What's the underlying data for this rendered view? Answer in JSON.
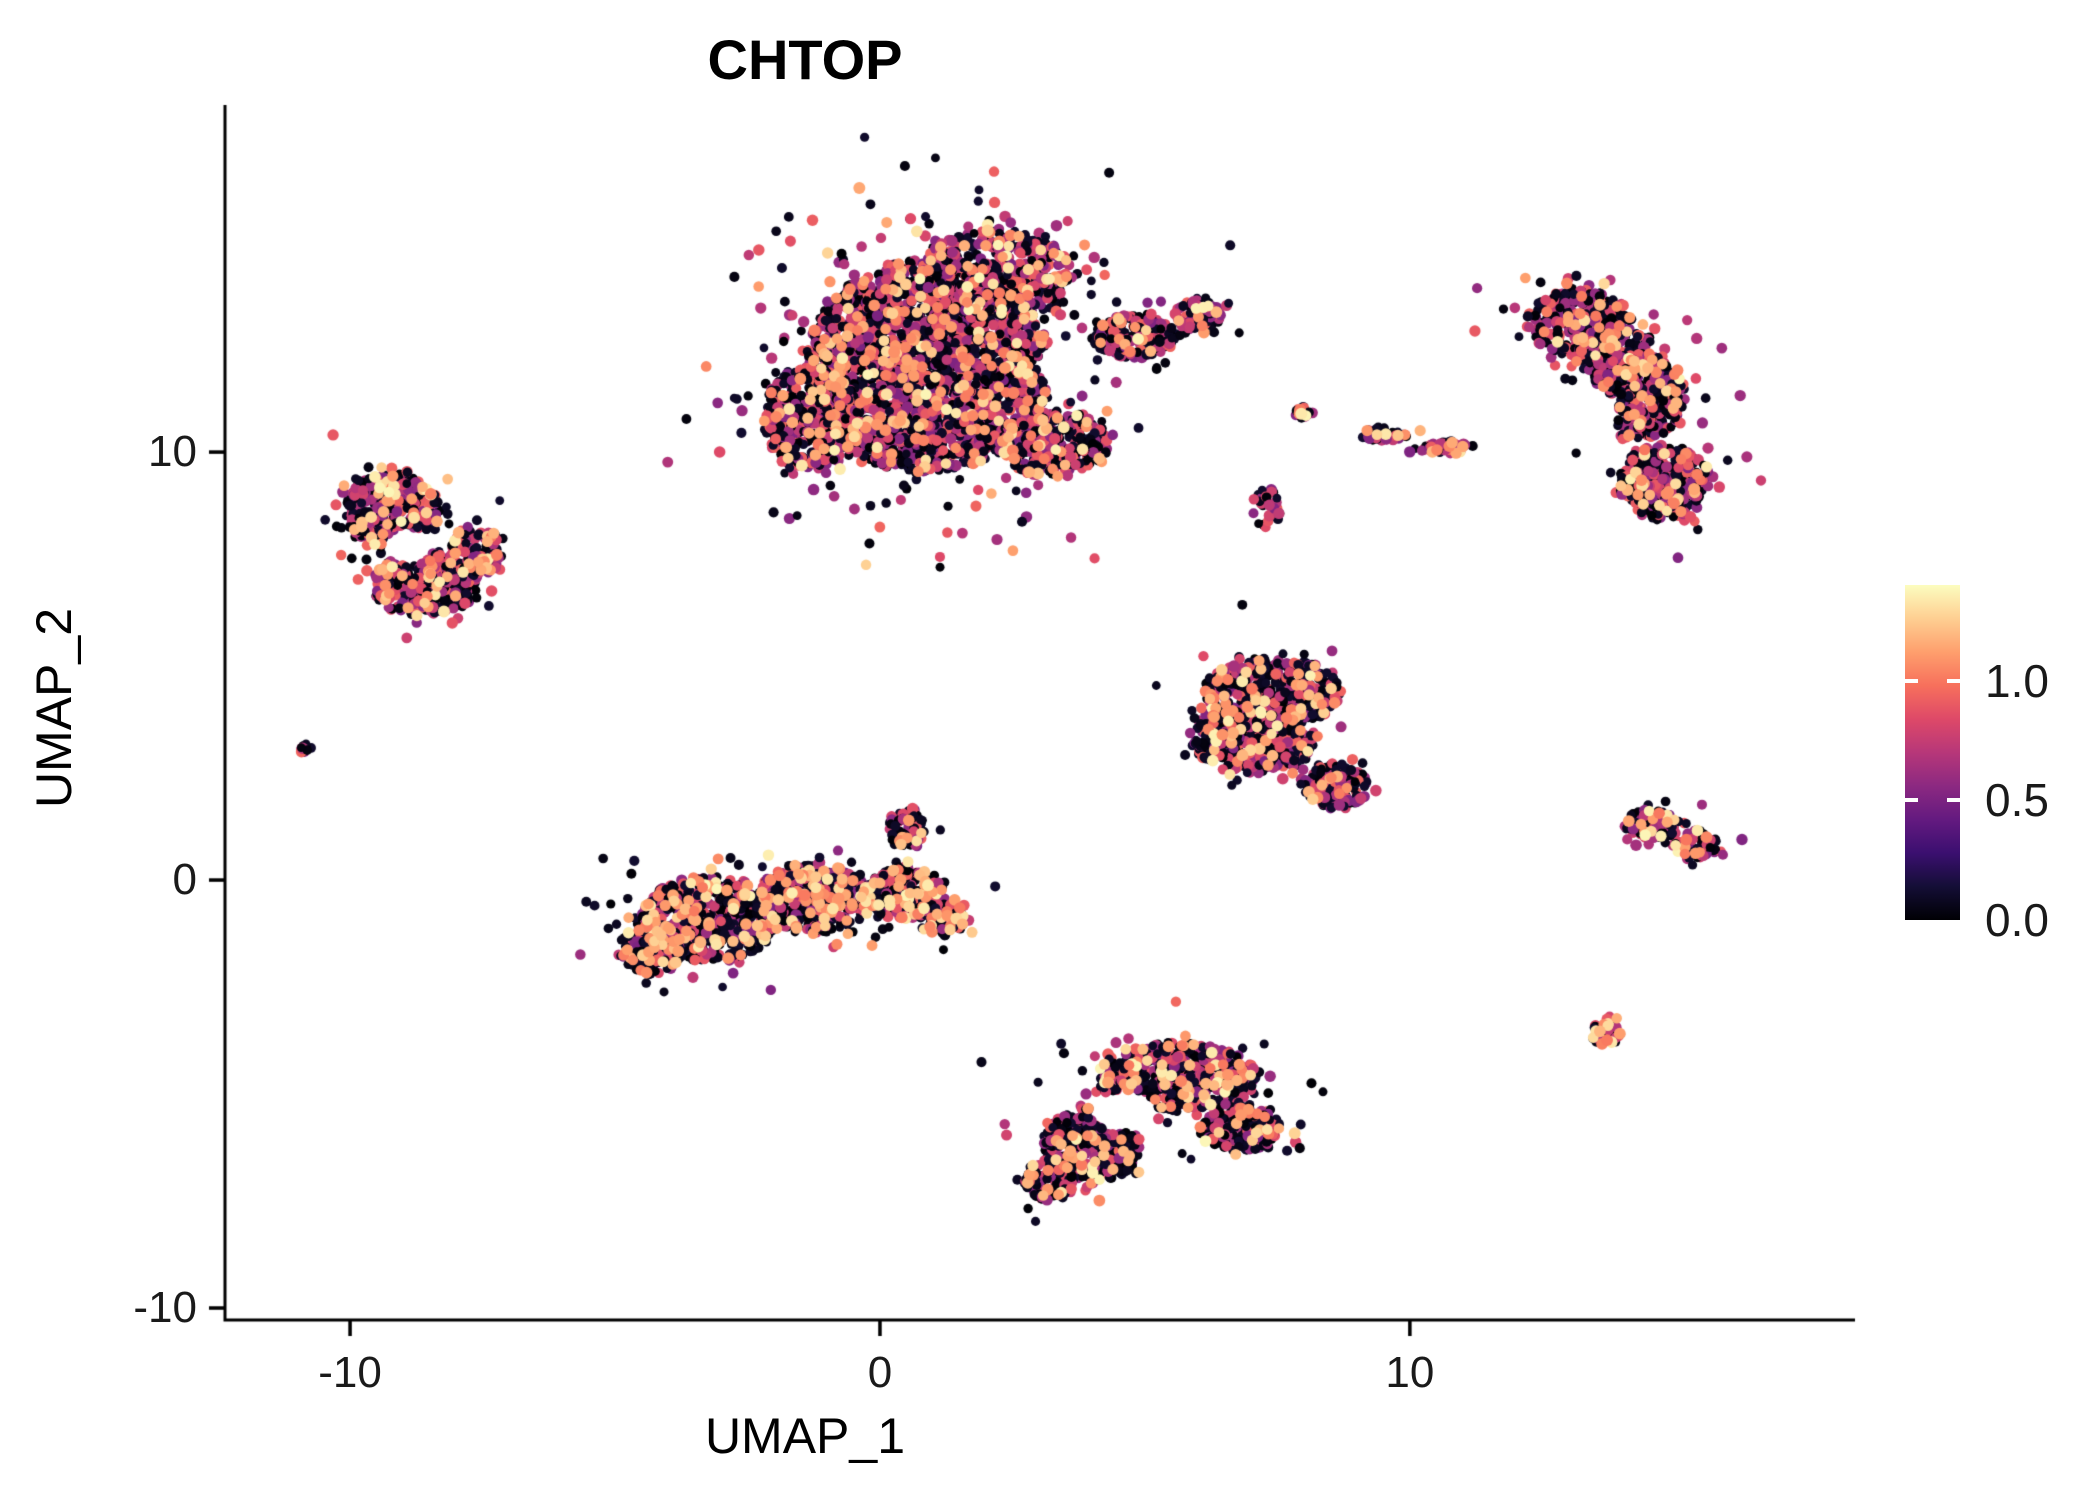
{
  "chart_data": {
    "type": "scatter",
    "title": "CHTOP",
    "subtitle": "",
    "xlabel": "UMAP_1",
    "ylabel": "UMAP_2",
    "grid": false,
    "background": "#ffffff",
    "xlim": [
      -12.36,
      18.4
    ],
    "ylim": [
      -10.28,
      18.11
    ],
    "x_ticks": [
      {
        "value": -10,
        "label": "-10"
      },
      {
        "value": 0,
        "label": "0"
      },
      {
        "value": 10,
        "label": "10"
      }
    ],
    "y_ticks": [
      {
        "value": 10,
        "label": "10"
      },
      {
        "value": 0,
        "label": "0"
      },
      {
        "value": -10,
        "label": "-10"
      }
    ],
    "legend": {
      "position": "right",
      "vmin": 0.0,
      "vmax": 1.4,
      "ticks": [
        {
          "value": 1.0,
          "label": "1.0"
        },
        {
          "value": 0.5,
          "label": "0.5"
        },
        {
          "value": 0.0,
          "label": "0.0"
        }
      ]
    },
    "colormap": {
      "name": "magma",
      "stops": [
        "#000004",
        "#140e36",
        "#3b0f70",
        "#641a80",
        "#8c2981",
        "#b73779",
        "#de4968",
        "#f7705c",
        "#fe9f6d",
        "#fecf92",
        "#fcfdbf"
      ]
    },
    "point": {
      "radius_low": 4.7,
      "radius_mid": 5.4,
      "radius_high": 5.6
    },
    "expression_levels": {
      "zero": [
        0.0,
        0.12
      ],
      "mid": [
        0.5,
        0.95
      ],
      "high": [
        1.0,
        1.2
      ],
      "top": [
        1.2,
        1.38
      ]
    },
    "clusters": [
      {
        "name": "top-center-large",
        "mix": {
          "zero": 0.48,
          "mid": 0.42,
          "high": 0.07,
          "top": 0.03
        },
        "holes": [
          {
            "x": 3.4,
            "y": 12.0,
            "rx": 0.45,
            "ry": 0.5
          }
        ],
        "lobes": [
          {
            "x": 0.9,
            "y": 12.0,
            "sx": 2.3,
            "sy": 2.5,
            "n": 2400
          },
          {
            "x": -1.3,
            "y": 10.8,
            "sx": 0.9,
            "sy": 1.2,
            "n": 400
          },
          {
            "x": 2.2,
            "y": 14.2,
            "sx": 1.4,
            "sy": 1.0,
            "n": 450
          },
          {
            "x": 3.3,
            "y": 10.2,
            "sx": 1.0,
            "sy": 0.8,
            "n": 300
          },
          {
            "x": 4.8,
            "y": 12.7,
            "sx": 0.8,
            "sy": 0.5,
            "n": 200
          },
          {
            "x": 6.0,
            "y": 13.2,
            "sx": 0.45,
            "sy": 0.35,
            "n": 100
          }
        ]
      },
      {
        "name": "top-right-crescent",
        "mix": {
          "zero": 0.5,
          "mid": 0.42,
          "high": 0.05,
          "top": 0.03
        },
        "holes": [
          {
            "x": 13.1,
            "y": 10.9,
            "rx": 0.85,
            "ry": 0.75
          }
        ],
        "lobes": [
          {
            "x": 13.2,
            "y": 13.0,
            "sx": 1.0,
            "sy": 0.8,
            "n": 300
          },
          {
            "x": 13.9,
            "y": 12.3,
            "sx": 0.8,
            "sy": 0.6,
            "n": 150
          },
          {
            "x": 14.3,
            "y": 11.3,
            "sx": 0.9,
            "sy": 1.0,
            "n": 380
          },
          {
            "x": 14.8,
            "y": 9.3,
            "sx": 0.85,
            "sy": 0.9,
            "n": 320
          }
        ]
      },
      {
        "name": "left-cluster",
        "mix": {
          "zero": 0.45,
          "mid": 0.45,
          "high": 0.06,
          "top": 0.04
        },
        "holes": [
          {
            "x": -8.9,
            "y": 7.8,
            "rx": 0.5,
            "ry": 0.45
          }
        ],
        "lobes": [
          {
            "x": -9.2,
            "y": 8.6,
            "sx": 0.9,
            "sy": 0.9,
            "n": 350
          },
          {
            "x": -8.6,
            "y": 6.9,
            "sx": 1.0,
            "sy": 0.75,
            "n": 350
          },
          {
            "x": -7.6,
            "y": 7.7,
            "sx": 0.5,
            "sy": 0.6,
            "n": 120
          }
        ]
      },
      {
        "name": "far-left-dot",
        "mix": {
          "zero": 0.5,
          "mid": 0.5,
          "high": 0.0,
          "top": 0.0
        },
        "holes": [],
        "lobes": [
          {
            "x": -10.85,
            "y": 3.1,
            "sx": 0.13,
            "sy": 0.13,
            "n": 14
          }
        ]
      },
      {
        "name": "middle-right-cluster",
        "mix": {
          "zero": 0.52,
          "mid": 0.4,
          "high": 0.05,
          "top": 0.03
        },
        "holes": [],
        "lobes": [
          {
            "x": 7.4,
            "y": 4.4,
            "sx": 1.3,
            "sy": 0.8,
            "n": 450
          },
          {
            "x": 7.2,
            "y": 3.2,
            "sx": 1.0,
            "sy": 0.7,
            "n": 300
          },
          {
            "x": 8.6,
            "y": 2.2,
            "sx": 0.6,
            "sy": 0.55,
            "n": 150
          },
          {
            "x": 6.3,
            "y": 3.4,
            "sx": 0.5,
            "sy": 0.6,
            "n": 120
          }
        ]
      },
      {
        "name": "bottom-left-cluster",
        "mix": {
          "zero": 0.55,
          "mid": 0.3,
          "high": 0.09,
          "top": 0.06
        },
        "holes": [],
        "lobes": [
          {
            "x": -3.2,
            "y": -0.9,
            "sx": 1.3,
            "sy": 1.0,
            "n": 650
          },
          {
            "x": -1.2,
            "y": -0.4,
            "sx": 1.1,
            "sy": 0.8,
            "n": 450
          },
          {
            "x": 0.4,
            "y": -0.3,
            "sx": 0.8,
            "sy": 0.6,
            "n": 250
          },
          {
            "x": -4.3,
            "y": -1.6,
            "sx": 0.6,
            "sy": 0.6,
            "n": 150
          },
          {
            "x": 0.5,
            "y": 1.2,
            "sx": 0.35,
            "sy": 0.5,
            "n": 70
          },
          {
            "x": 1.2,
            "y": -0.9,
            "sx": 0.4,
            "sy": 0.4,
            "n": 80
          }
        ]
      },
      {
        "name": "bottom-center-cluster",
        "mix": {
          "zero": 0.6,
          "mid": 0.3,
          "high": 0.06,
          "top": 0.04
        },
        "holes": [
          {
            "x": 4.6,
            "y": -5.4,
            "rx": 0.65,
            "ry": 0.5
          }
        ],
        "lobes": [
          {
            "x": 5.6,
            "y": -4.6,
            "sx": 1.5,
            "sy": 0.8,
            "n": 550
          },
          {
            "x": 4.0,
            "y": -6.2,
            "sx": 0.9,
            "sy": 0.9,
            "n": 350
          },
          {
            "x": 6.8,
            "y": -5.8,
            "sx": 0.8,
            "sy": 0.6,
            "n": 200
          },
          {
            "x": 3.2,
            "y": -7.0,
            "sx": 0.5,
            "sy": 0.5,
            "n": 120
          }
        ]
      },
      {
        "name": "right-small-elongated",
        "mix": {
          "zero": 0.45,
          "mid": 0.4,
          "high": 0.08,
          "top": 0.07
        },
        "holes": [],
        "lobes": [
          {
            "x": 14.6,
            "y": 1.3,
            "sx": 0.55,
            "sy": 0.35,
            "n": 90
          },
          {
            "x": 15.4,
            "y": 0.8,
            "sx": 0.45,
            "sy": 0.3,
            "n": 70
          }
        ]
      },
      {
        "name": "right-small-round",
        "mix": {
          "zero": 0.45,
          "mid": 0.35,
          "high": 0.1,
          "top": 0.1
        },
        "holes": [],
        "lobes": [
          {
            "x": 13.7,
            "y": -3.6,
            "sx": 0.28,
            "sy": 0.28,
            "n": 50
          }
        ]
      },
      {
        "name": "small-dot-mid-top",
        "mix": {
          "zero": 0.3,
          "mid": 0.4,
          "high": 0.15,
          "top": 0.15
        },
        "holes": [],
        "lobes": [
          {
            "x": 8.0,
            "y": 10.9,
            "sx": 0.18,
            "sy": 0.16,
            "n": 20
          }
        ]
      },
      {
        "name": "streak-mid-top",
        "mix": {
          "zero": 0.35,
          "mid": 0.45,
          "high": 0.1,
          "top": 0.1
        },
        "holes": [],
        "lobes": [
          {
            "x": 9.5,
            "y": 10.4,
            "sx": 0.45,
            "sy": 0.16,
            "n": 45
          },
          {
            "x": 10.7,
            "y": 10.1,
            "sx": 0.55,
            "sy": 0.16,
            "n": 55
          }
        ]
      },
      {
        "name": "sparse-dots-mid",
        "mix": {
          "zero": 0.7,
          "mid": 0.3,
          "high": 0.0,
          "top": 0.0
        },
        "holes": [],
        "lobes": [
          {
            "x": 7.3,
            "y": 8.7,
            "sx": 0.28,
            "sy": 0.45,
            "n": 28
          }
        ]
      }
    ]
  }
}
